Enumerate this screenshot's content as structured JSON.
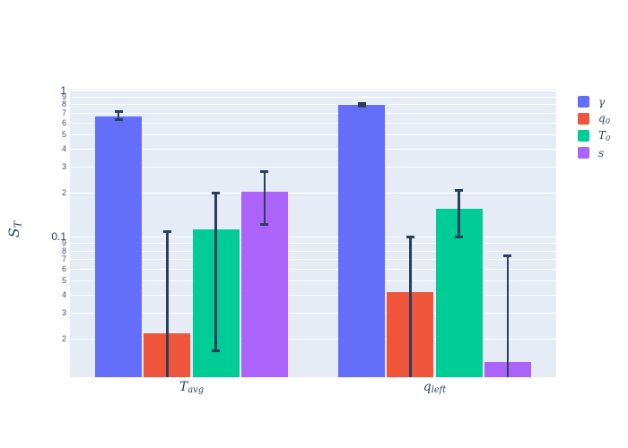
{
  "chart_data": {
    "type": "bar",
    "orientation": "grouped-vertical",
    "log_y": true,
    "title": "",
    "xlabel": "",
    "axis": {
      "y_title_main": "S",
      "y_title_sub": "T",
      "y_major_ticks": [
        {
          "value": 1,
          "label": "1"
        },
        {
          "value": 0.1,
          "label": "0.1"
        }
      ],
      "y_minor_ticks": [
        {
          "value": 0.9,
          "label": "9"
        },
        {
          "value": 0.8,
          "label": "8"
        },
        {
          "value": 0.7,
          "label": "7"
        },
        {
          "value": 0.6,
          "label": "6"
        },
        {
          "value": 0.5,
          "label": "5"
        },
        {
          "value": 0.4,
          "label": "4"
        },
        {
          "value": 0.3,
          "label": "3"
        },
        {
          "value": 0.2,
          "label": "2"
        },
        {
          "value": 0.09,
          "label": "9"
        },
        {
          "value": 0.08,
          "label": "8"
        },
        {
          "value": 0.07,
          "label": "7"
        },
        {
          "value": 0.06,
          "label": "6"
        },
        {
          "value": 0.05,
          "label": "5"
        },
        {
          "value": 0.04,
          "label": "4"
        },
        {
          "value": 0.03,
          "label": "3"
        },
        {
          "value": 0.02,
          "label": "2"
        }
      ],
      "y_range_log": [
        0.011,
        1.03
      ],
      "grid": "on",
      "legend_position": "top-right"
    },
    "categories": [
      {
        "key": "t-avg",
        "main": "T",
        "sub": "avg"
      },
      {
        "key": "q-left",
        "main": "q",
        "sub": "left"
      }
    ],
    "series": [
      {
        "key": "gamma",
        "name_main": "γ",
        "name_sub": "",
        "color": "#636EFA",
        "values": [
          0.67,
          0.8
        ],
        "err_hi": [
          0.72,
          0.82
        ],
        "err_lo": [
          0.63,
          0.78
        ]
      },
      {
        "key": "q0",
        "name_main": "q",
        "name_sub": "0",
        "color": "#EF553B",
        "values": [
          0.022,
          0.042
        ],
        "err_hi": [
          0.11,
          0.1
        ],
        "err_lo": [
          null,
          null
        ]
      },
      {
        "key": "t0",
        "name_main": "T",
        "name_sub": "0",
        "color": "#00CC96",
        "values": [
          0.113,
          0.155
        ],
        "err_hi": [
          0.2,
          0.21
        ],
        "err_lo": [
          0.0165,
          0.099
        ]
      },
      {
        "key": "s",
        "name_main": "s",
        "name_sub": "",
        "color": "#AB63FA",
        "values": [
          0.205,
          0.014
        ],
        "err_hi": [
          0.28,
          0.075
        ],
        "err_lo": [
          0.12,
          null
        ]
      }
    ],
    "colors": {
      "plot_background": "#E5ECF6",
      "paper_background": "#FFFFFF",
      "gridline": "#FFFFFF",
      "error_bar": "#2a3f5f",
      "tick_label": "#2a3f5f"
    }
  }
}
